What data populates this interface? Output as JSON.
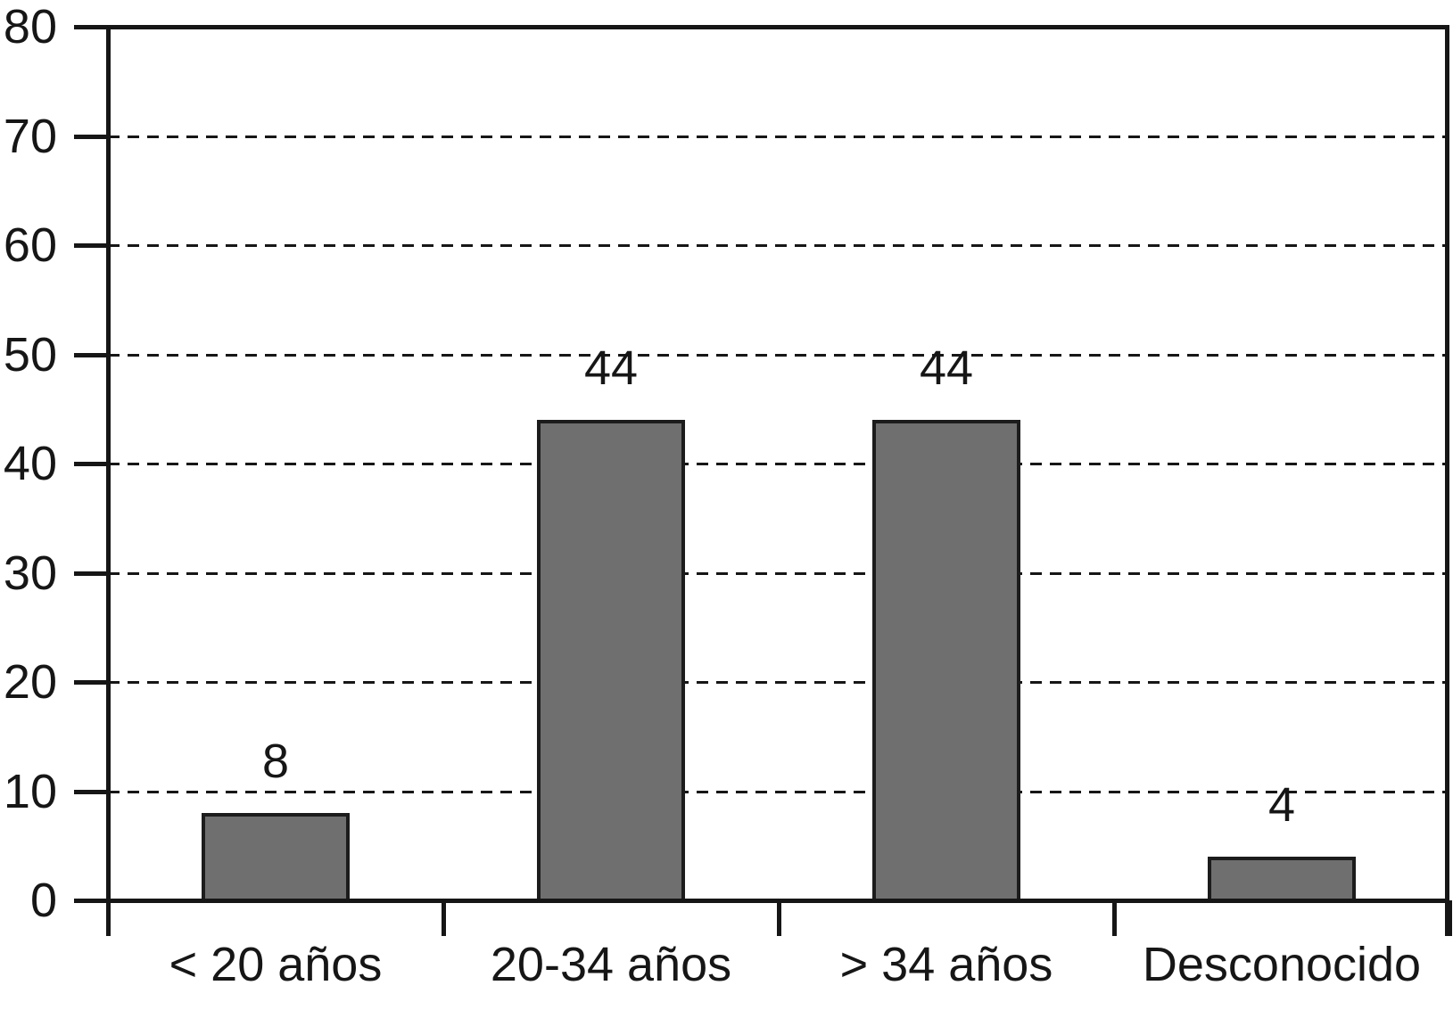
{
  "chart_data": {
    "type": "bar",
    "title": "",
    "xlabel": "",
    "ylabel": "",
    "categories": [
      "< 20 años",
      "20-34 años",
      "> 34 años",
      "Desconocido"
    ],
    "values": [
      8,
      44,
      44,
      4
    ],
    "value_labels": [
      "8",
      "44",
      "44",
      "4"
    ],
    "ylim": [
      0,
      80
    ],
    "yticks": [
      0,
      10,
      20,
      30,
      40,
      50,
      60,
      70,
      80
    ],
    "ytick_labels": [
      "0",
      "10",
      "20",
      "30",
      "40",
      "50",
      "60",
      "70",
      "80"
    ],
    "grid": "horizontal dashed lines at 10 through 70, plot framed on top and right",
    "legend": "none",
    "colors": {
      "bar_fill": "#6f6f6f",
      "bar_border": "#1c1c1c",
      "axis": "#161616",
      "text": "#161616",
      "background": "#ffffff"
    }
  }
}
